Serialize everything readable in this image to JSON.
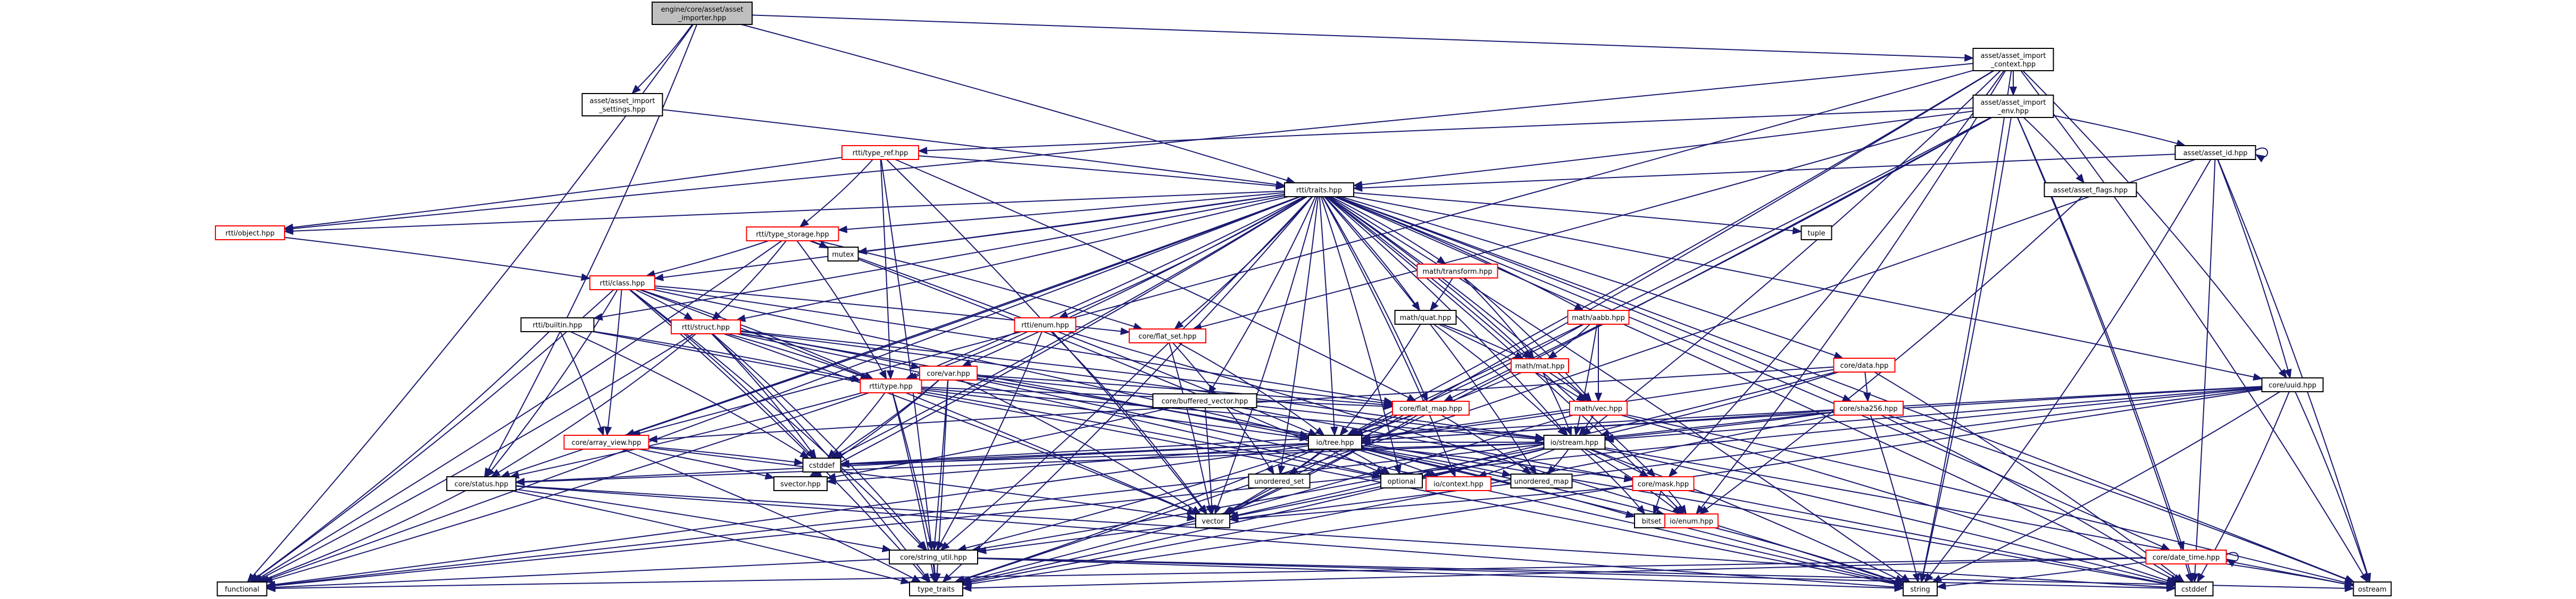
{
  "colors": {
    "edge": "#191970",
    "root_fill": "#bfbfbf",
    "node_fill": "#ffffff",
    "node_border": "#000000",
    "missing_border": "#ff0000",
    "text": "#000000"
  },
  "nodes": [
    {
      "id": "root",
      "lines": [
        "engine/core/asset/asset",
        "_importer.hpp"
      ],
      "root": true
    },
    {
      "id": "aic",
      "lines": [
        "asset/asset_import",
        "_context.hpp"
      ]
    },
    {
      "id": "ais",
      "lines": [
        "asset/asset_import",
        "_settings.hpp"
      ]
    },
    {
      "id": "aie",
      "lines": [
        "asset/asset_import",
        "_env.hpp"
      ]
    },
    {
      "id": "tref",
      "lines": [
        "rtti/type_ref.hpp"
      ],
      "red": true
    },
    {
      "id": "aid",
      "lines": [
        "asset/asset_id.hpp"
      ]
    },
    {
      "id": "traits",
      "lines": [
        "rtti/traits.hpp"
      ]
    },
    {
      "id": "aflags",
      "lines": [
        "asset/asset_flags.hpp"
      ]
    },
    {
      "id": "object",
      "lines": [
        "rtti/object.hpp"
      ],
      "red": true
    },
    {
      "id": "tstor",
      "lines": [
        "rtti/type_storage.hpp"
      ],
      "red": true
    },
    {
      "id": "mutex",
      "lines": [
        "mutex"
      ]
    },
    {
      "id": "mtrans",
      "lines": [
        "math/transform.hpp"
      ],
      "red": true
    },
    {
      "id": "tuple",
      "lines": [
        "tuple"
      ]
    },
    {
      "id": "class",
      "lines": [
        "rtti/class.hpp"
      ],
      "red": true
    },
    {
      "id": "mquat",
      "lines": [
        "math/quat.hpp"
      ]
    },
    {
      "id": "maabb",
      "lines": [
        "math/aabb.hpp"
      ],
      "red": true
    },
    {
      "id": "builtin",
      "lines": [
        "rtti/builtin.hpp"
      ]
    },
    {
      "id": "renum",
      "lines": [
        "rtti/enum.hpp"
      ],
      "red": true
    },
    {
      "id": "struct",
      "lines": [
        "rtti/struct.hpp"
      ],
      "red": true
    },
    {
      "id": "fset",
      "lines": [
        "core/flat_set.hpp"
      ],
      "red": true
    },
    {
      "id": "mmat",
      "lines": [
        "math/mat.hpp"
      ],
      "red": true
    },
    {
      "id": "cdata",
      "lines": [
        "core/data.hpp"
      ],
      "red": true
    },
    {
      "id": "uuid",
      "lines": [
        "core/uuid.hpp"
      ]
    },
    {
      "id": "rtype",
      "lines": [
        "rtti/type.hpp"
      ],
      "red": true
    },
    {
      "id": "cvar",
      "lines": [
        "core/var.hpp"
      ],
      "red": true
    },
    {
      "id": "bvec",
      "lines": [
        "core/buffered_vector.hpp"
      ]
    },
    {
      "id": "fmap",
      "lines": [
        "core/flat_map.hpp"
      ],
      "red": true
    },
    {
      "id": "mvec",
      "lines": [
        "math/vec.hpp"
      ],
      "red": true
    },
    {
      "id": "sha",
      "lines": [
        "core/sha256.hpp"
      ],
      "red": true
    },
    {
      "id": "aview",
      "lines": [
        "core/array_view.hpp"
      ],
      "red": true
    },
    {
      "id": "iotree",
      "lines": [
        "io/tree.hpp"
      ]
    },
    {
      "id": "iostream",
      "lines": [
        "io/stream.hpp"
      ]
    },
    {
      "id": "status",
      "lines": [
        "core/status.hpp"
      ]
    },
    {
      "id": "svector",
      "lines": [
        "svector.hpp"
      ]
    },
    {
      "id": "cstddef_t",
      "lines": [
        "cstddef"
      ]
    },
    {
      "id": "unordered_set",
      "lines": [
        "unordered_set"
      ]
    },
    {
      "id": "optional",
      "lines": [
        "optional"
      ]
    },
    {
      "id": "ioctx",
      "lines": [
        "io/context.hpp"
      ],
      "red": true
    },
    {
      "id": "unordered_map",
      "lines": [
        "unordered_map"
      ]
    },
    {
      "id": "cmask",
      "lines": [
        "core/mask.hpp"
      ],
      "red": true
    },
    {
      "id": "vector",
      "lines": [
        "vector"
      ]
    },
    {
      "id": "bitset",
      "lines": [
        "bitset"
      ]
    },
    {
      "id": "ioenum",
      "lines": [
        "io/enum.hpp"
      ],
      "red": true
    },
    {
      "id": "strutil",
      "lines": [
        "core/string_util.hpp"
      ]
    },
    {
      "id": "dtime",
      "lines": [
        "core/date_time.hpp"
      ],
      "red": true
    },
    {
      "id": "functional",
      "lines": [
        "functional"
      ]
    },
    {
      "id": "type_traits",
      "lines": [
        "type_traits"
      ]
    },
    {
      "id": "string",
      "lines": [
        "string"
      ]
    },
    {
      "id": "cstddef",
      "lines": [
        "cstddef"
      ]
    },
    {
      "id": "ostream",
      "lines": [
        "ostream"
      ]
    }
  ],
  "edges": [
    [
      "root",
      "aic"
    ],
    [
      "root",
      "ais"
    ],
    [
      "root",
      "traits"
    ],
    [
      "root",
      "status"
    ],
    [
      "root",
      "functional"
    ],
    [
      "aic",
      "aie"
    ],
    [
      "aic",
      "uuid"
    ],
    [
      "aic",
      "object"
    ],
    [
      "aic",
      "aview"
    ],
    [
      "aic",
      "iostream"
    ],
    [
      "aic",
      "ostream"
    ],
    [
      "aic",
      "string"
    ],
    [
      "aic",
      "cmask"
    ],
    [
      "aic",
      "ioenum"
    ],
    [
      "aic",
      "vector"
    ],
    [
      "aic",
      "iotree"
    ],
    [
      "ais",
      "traits"
    ],
    [
      "aie",
      "tref"
    ],
    [
      "aie",
      "aid"
    ],
    [
      "aie",
      "traits"
    ],
    [
      "aie",
      "aflags"
    ],
    [
      "aie",
      "fmap"
    ],
    [
      "aie",
      "fset"
    ],
    [
      "aie",
      "dtime"
    ],
    [
      "aie",
      "string"
    ],
    [
      "aie",
      "iotree"
    ],
    [
      "aie",
      "vector"
    ],
    [
      "aie",
      "cstddef"
    ],
    [
      "aid",
      "traits"
    ],
    [
      "aid",
      "uuid"
    ],
    [
      "aid",
      "string"
    ],
    [
      "aid",
      "ostream"
    ],
    [
      "aid",
      "type_traits"
    ],
    [
      "aid",
      "cstddef"
    ],
    [
      "aid",
      "aid"
    ],
    [
      "aflags",
      "ioenum"
    ],
    [
      "tref",
      "tstor"
    ],
    [
      "tref",
      "object"
    ],
    [
      "tref",
      "rtype"
    ],
    [
      "tref",
      "traits"
    ],
    [
      "tref",
      "vector"
    ],
    [
      "tref",
      "fmap"
    ],
    [
      "tref",
      "type_traits"
    ],
    [
      "traits",
      "object"
    ],
    [
      "traits",
      "tstor"
    ],
    [
      "traits",
      "mutex"
    ],
    [
      "traits",
      "mtrans"
    ],
    [
      "traits",
      "tuple"
    ],
    [
      "traits",
      "class"
    ],
    [
      "traits",
      "mquat"
    ],
    [
      "traits",
      "maabb"
    ],
    [
      "traits",
      "builtin"
    ],
    [
      "traits",
      "renum"
    ],
    [
      "traits",
      "struct"
    ],
    [
      "traits",
      "fset"
    ],
    [
      "traits",
      "mmat"
    ],
    [
      "traits",
      "cdata"
    ],
    [
      "traits",
      "uuid"
    ],
    [
      "traits",
      "rtype"
    ],
    [
      "traits",
      "cvar"
    ],
    [
      "traits",
      "bvec"
    ],
    [
      "traits",
      "fmap"
    ],
    [
      "traits",
      "mvec"
    ],
    [
      "traits",
      "sha"
    ],
    [
      "traits",
      "aview"
    ],
    [
      "traits",
      "iotree"
    ],
    [
      "traits",
      "iostream"
    ],
    [
      "traits",
      "status"
    ],
    [
      "traits",
      "svector"
    ],
    [
      "traits",
      "cstddef_t"
    ],
    [
      "traits",
      "unordered_set"
    ],
    [
      "traits",
      "optional"
    ],
    [
      "traits",
      "ioctx"
    ],
    [
      "traits",
      "unordered_map"
    ],
    [
      "traits",
      "cmask"
    ],
    [
      "traits",
      "vector"
    ],
    [
      "traits",
      "ioenum"
    ],
    [
      "traits",
      "strutil"
    ],
    [
      "traits",
      "dtime"
    ],
    [
      "traits",
      "functional"
    ],
    [
      "traits",
      "type_traits"
    ],
    [
      "traits",
      "string"
    ],
    [
      "traits",
      "cstddef"
    ],
    [
      "traits",
      "ostream"
    ],
    [
      "object",
      "class"
    ],
    [
      "tstor",
      "class"
    ],
    [
      "tstor",
      "mutex"
    ],
    [
      "tstor",
      "rtype"
    ],
    [
      "tstor",
      "fset"
    ],
    [
      "tstor",
      "struct"
    ],
    [
      "tstor",
      "optional"
    ],
    [
      "tstor",
      "iotree"
    ],
    [
      "tstor",
      "functional"
    ],
    [
      "class",
      "struct"
    ],
    [
      "class",
      "rtype"
    ],
    [
      "class",
      "fset"
    ],
    [
      "class",
      "fmap"
    ],
    [
      "class",
      "aview"
    ],
    [
      "class",
      "status"
    ],
    [
      "class",
      "cstddef_t"
    ],
    [
      "class",
      "vector"
    ],
    [
      "class",
      "functional"
    ],
    [
      "class",
      "type_traits"
    ],
    [
      "class",
      "iotree"
    ],
    [
      "class",
      "strutil"
    ],
    [
      "builtin",
      "rtype"
    ],
    [
      "builtin",
      "aview"
    ],
    [
      "builtin",
      "functional"
    ],
    [
      "builtin",
      "cstddef_t"
    ],
    [
      "builtin",
      "string"
    ],
    [
      "struct",
      "rtype"
    ],
    [
      "struct",
      "fmap"
    ],
    [
      "struct",
      "iotree"
    ],
    [
      "struct",
      "iostream"
    ],
    [
      "struct",
      "status"
    ],
    [
      "struct",
      "cstddef_t"
    ],
    [
      "struct",
      "vector"
    ],
    [
      "struct",
      "functional"
    ],
    [
      "struct",
      "type_traits"
    ],
    [
      "struct",
      "strutil"
    ],
    [
      "struct",
      "cvar"
    ],
    [
      "struct",
      "optional"
    ],
    [
      "renum",
      "rtype"
    ],
    [
      "renum",
      "vector"
    ],
    [
      "renum",
      "strutil"
    ],
    [
      "renum",
      "string"
    ],
    [
      "rtype",
      "fmap"
    ],
    [
      "rtype",
      "iotree"
    ],
    [
      "rtype",
      "iostream"
    ],
    [
      "rtype",
      "status"
    ],
    [
      "rtype",
      "cstddef_t"
    ],
    [
      "rtype",
      "functional"
    ],
    [
      "rtype",
      "type_traits"
    ],
    [
      "rtype",
      "strutil"
    ],
    [
      "rtype",
      "optional"
    ],
    [
      "cvar",
      "fmap"
    ],
    [
      "cvar",
      "iotree"
    ],
    [
      "cvar",
      "iostream"
    ],
    [
      "cvar",
      "strutil"
    ],
    [
      "cvar",
      "cstddef_t"
    ],
    [
      "cvar",
      "svector"
    ],
    [
      "cvar",
      "vector"
    ],
    [
      "cvar",
      "string"
    ],
    [
      "cvar",
      "cstddef"
    ],
    [
      "cvar",
      "type_traits"
    ],
    [
      "bvec",
      "svector"
    ],
    [
      "bvec",
      "vector"
    ],
    [
      "bvec",
      "cstddef"
    ],
    [
      "fset",
      "iotree"
    ],
    [
      "fset",
      "unordered_set"
    ],
    [
      "fset",
      "vector"
    ],
    [
      "fmap",
      "iotree"
    ],
    [
      "fmap",
      "unordered_map"
    ],
    [
      "fmap",
      "vector"
    ],
    [
      "mtrans",
      "mquat"
    ],
    [
      "mtrans",
      "mmat"
    ],
    [
      "mtrans",
      "mvec"
    ],
    [
      "mquat",
      "mmat"
    ],
    [
      "mquat",
      "mvec"
    ],
    [
      "mquat",
      "iotree"
    ],
    [
      "mquat",
      "iostream"
    ],
    [
      "maabb",
      "mmat"
    ],
    [
      "maabb",
      "mvec"
    ],
    [
      "maabb",
      "iotree"
    ],
    [
      "maabb",
      "iostream"
    ],
    [
      "mmat",
      "mvec"
    ],
    [
      "mmat",
      "iotree"
    ],
    [
      "mmat",
      "iostream"
    ],
    [
      "mvec",
      "iotree"
    ],
    [
      "mvec",
      "iostream"
    ],
    [
      "mvec",
      "type_traits"
    ],
    [
      "mvec",
      "cstddef"
    ],
    [
      "mvec",
      "ostream"
    ],
    [
      "cdata",
      "sha"
    ],
    [
      "cdata",
      "iotree"
    ],
    [
      "cdata",
      "iostream"
    ],
    [
      "cdata",
      "aview"
    ],
    [
      "cdata",
      "cstddef"
    ],
    [
      "cdata",
      "vector"
    ],
    [
      "sha",
      "iotree"
    ],
    [
      "sha",
      "iostream"
    ],
    [
      "sha",
      "string"
    ],
    [
      "sha",
      "functional"
    ],
    [
      "sha",
      "type_traits"
    ],
    [
      "sha",
      "cstddef"
    ],
    [
      "sha",
      "ostream"
    ],
    [
      "uuid",
      "iotree"
    ],
    [
      "uuid",
      "iostream"
    ],
    [
      "uuid",
      "cstddef_t"
    ],
    [
      "uuid",
      "string"
    ],
    [
      "uuid",
      "functional"
    ],
    [
      "uuid",
      "type_traits"
    ],
    [
      "uuid",
      "cstddef"
    ],
    [
      "uuid",
      "ostream"
    ],
    [
      "uuid",
      "strutil"
    ],
    [
      "aview",
      "svector"
    ],
    [
      "aview",
      "vector"
    ],
    [
      "aview",
      "cstddef_t"
    ],
    [
      "aview",
      "type_traits"
    ],
    [
      "iotree",
      "status"
    ],
    [
      "iotree",
      "ioctx"
    ],
    [
      "iotree",
      "optional"
    ],
    [
      "iotree",
      "unordered_map"
    ],
    [
      "iotree",
      "unordered_set"
    ],
    [
      "iotree",
      "vector"
    ],
    [
      "iotree",
      "svector"
    ],
    [
      "iotree",
      "cstddef_t"
    ],
    [
      "iotree",
      "strutil"
    ],
    [
      "iotree",
      "type_traits"
    ],
    [
      "iotree",
      "string"
    ],
    [
      "iotree",
      "bitset"
    ],
    [
      "iotree",
      "cmask"
    ],
    [
      "iotree",
      "ioenum"
    ],
    [
      "iotree",
      "functional"
    ],
    [
      "iostream",
      "iotree"
    ],
    [
      "iostream",
      "status"
    ],
    [
      "iostream",
      "ioctx"
    ],
    [
      "iostream",
      "cstddef_t"
    ],
    [
      "iostream",
      "vector"
    ],
    [
      "iostream",
      "cmask"
    ],
    [
      "iostream",
      "ioenum"
    ],
    [
      "iostream",
      "optional"
    ],
    [
      "iostream",
      "unordered_map"
    ],
    [
      "iostream",
      "strutil"
    ],
    [
      "iostream",
      "string"
    ],
    [
      "iostream",
      "bitset"
    ],
    [
      "iostream",
      "type_traits"
    ],
    [
      "iostream",
      "cstddef"
    ],
    [
      "iostream",
      "ostream"
    ],
    [
      "status",
      "strutil"
    ],
    [
      "status",
      "functional"
    ],
    [
      "status",
      "type_traits"
    ],
    [
      "status",
      "string"
    ],
    [
      "status",
      "cstddef"
    ],
    [
      "cmask",
      "bitset"
    ],
    [
      "cmask",
      "ioenum"
    ],
    [
      "cmask",
      "vector"
    ],
    [
      "ioenum",
      "string"
    ],
    [
      "strutil",
      "string"
    ],
    [
      "strutil",
      "type_traits"
    ],
    [
      "strutil",
      "cstddef"
    ],
    [
      "strutil",
      "ostream"
    ],
    [
      "strutil",
      "functional"
    ],
    [
      "dtime",
      "dtime"
    ],
    [
      "dtime",
      "string"
    ],
    [
      "dtime",
      "functional"
    ],
    [
      "dtime",
      "type_traits"
    ],
    [
      "dtime",
      "cstddef"
    ],
    [
      "dtime",
      "ostream"
    ]
  ]
}
